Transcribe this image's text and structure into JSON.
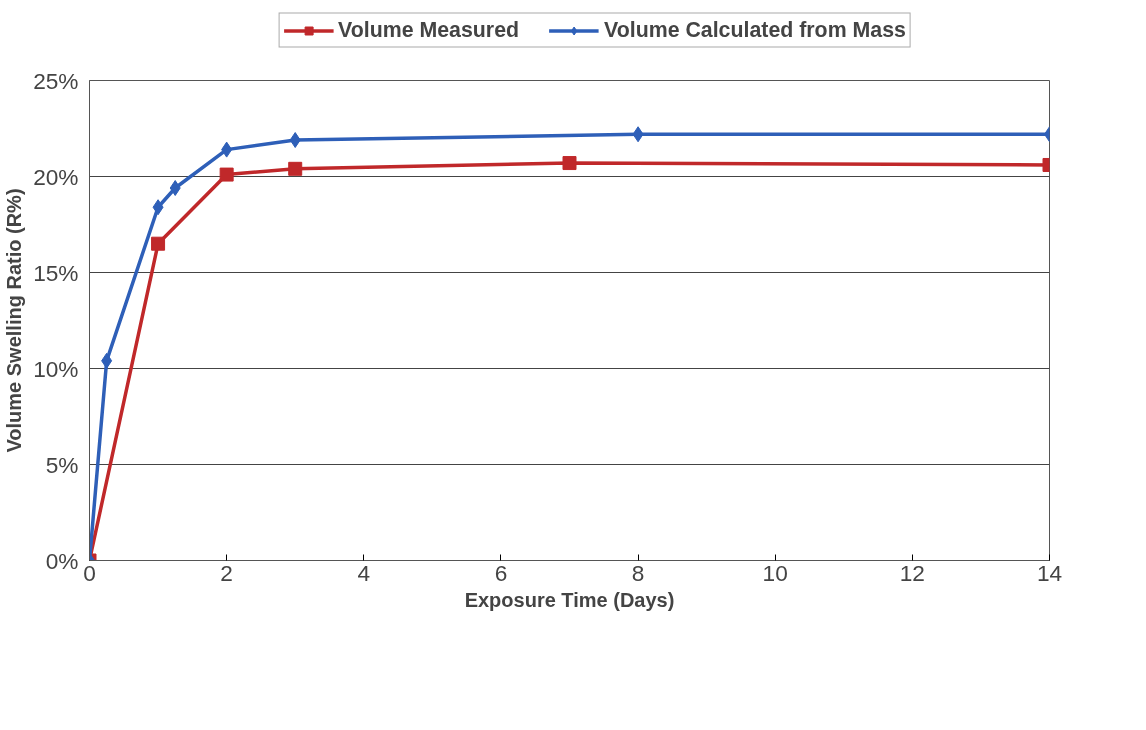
{
  "chart_data": {
    "type": "line",
    "xlabel": "Exposure Time (Days)",
    "ylabel": "Volume Swelling Ratio (R%)",
    "xlim": [
      0,
      14
    ],
    "xticks": [
      0,
      2,
      4,
      6,
      8,
      10,
      12,
      14
    ],
    "ylim": [
      0,
      25
    ],
    "yticks": [
      {
        "value": 0,
        "label": "0%"
      },
      {
        "value": 5,
        "label": "5%"
      },
      {
        "value": 10,
        "label": "10%"
      },
      {
        "value": 15,
        "label": "15%"
      },
      {
        "value": 20,
        "label": "20%"
      },
      {
        "value": 25,
        "label": "25%"
      }
    ],
    "grid": "y",
    "legend": "top",
    "line_style": "solid",
    "series": [
      {
        "name": "Volume Measured",
        "color": "#c0282a",
        "marker": "square",
        "x": [
          0,
          1,
          2,
          3,
          7,
          14
        ],
        "values": [
          0,
          16.5,
          20.1,
          20.4,
          20.7,
          20.6
        ]
      },
      {
        "name": "Volume Calculated from Mass",
        "color": "#2e5fb8",
        "marker": "diamond",
        "x": [
          0,
          0.25,
          1,
          1.25,
          2,
          3,
          8,
          14
        ],
        "values": [
          0,
          10.4,
          18.4,
          19.4,
          21.4,
          21.9,
          22.2,
          22.2
        ]
      }
    ]
  }
}
